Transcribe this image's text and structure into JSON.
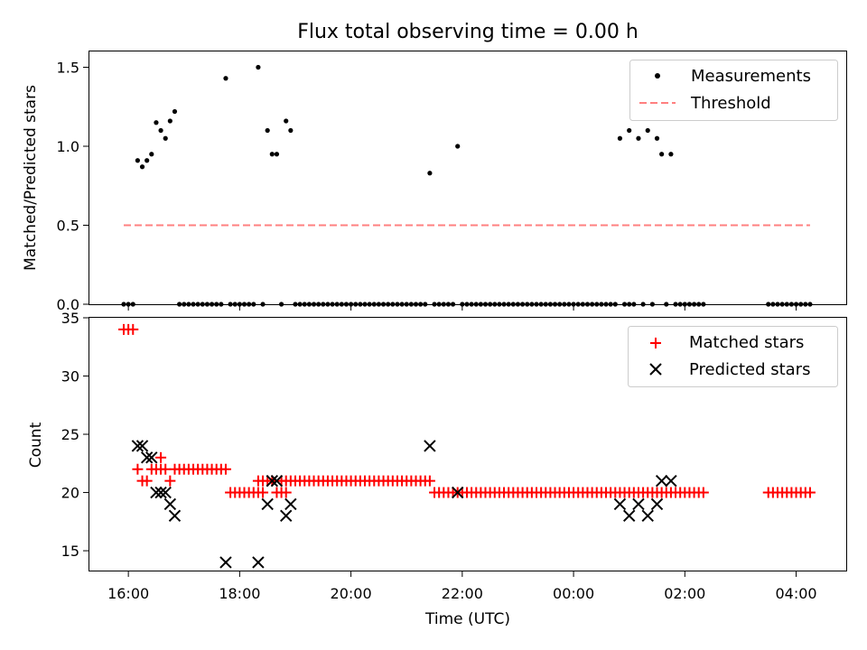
{
  "chart_data": [
    {
      "type": "scatter",
      "title": "Flux total observing time = 0.00 h",
      "ylabel": "Matched/Predicted stars",
      "xlabel": "",
      "ylim": [
        0.0,
        1.6
      ],
      "xlim": [
        "15:18",
        "04:54"
      ],
      "yticks": [
        "0.0",
        "0.5",
        "1.0",
        "1.5"
      ],
      "legend_position": "top-right",
      "series": [
        {
          "name": "Measurements",
          "marker": "dot",
          "color": "#000000",
          "points": [
            [
              "16:10",
              0.91
            ],
            [
              "16:15",
              0.87
            ],
            [
              "16:20",
              0.91
            ],
            [
              "16:25",
              0.95
            ],
            [
              "16:30",
              1.15
            ],
            [
              "16:35",
              1.1
            ],
            [
              "16:40",
              1.05
            ],
            [
              "16:45",
              1.16
            ],
            [
              "16:50",
              1.22
            ],
            [
              "17:45",
              1.43
            ],
            [
              "18:20",
              1.5
            ],
            [
              "18:30",
              1.1
            ],
            [
              "18:35",
              0.95
            ],
            [
              "18:40",
              0.95
            ],
            [
              "18:50",
              1.16
            ],
            [
              "18:55",
              1.1
            ],
            [
              "21:25",
              0.83
            ],
            [
              "21:55",
              1.0
            ],
            [
              "00:50",
              1.05
            ],
            [
              "01:00",
              1.1
            ],
            [
              "01:10",
              1.05
            ],
            [
              "01:20",
              1.1
            ],
            [
              "01:30",
              1.05
            ],
            [
              "01:35",
              0.95
            ],
            [
              "01:45",
              0.95
            ]
          ],
          "zero_points": [
            [
              "15:55",
              "16:05"
            ],
            [
              "16:55",
              "17:40"
            ],
            [
              "17:50",
              "18:15"
            ],
            [
              "18:25",
              "18:25"
            ],
            [
              "18:45",
              "18:45"
            ],
            [
              "19:00",
              "21:20"
            ],
            [
              "21:30",
              "21:50"
            ],
            [
              "22:00",
              "00:45"
            ],
            [
              "00:55",
              "01:05"
            ],
            [
              "01:15",
              "01:15"
            ],
            [
              "01:25",
              "01:25"
            ],
            [
              "01:40",
              "01:40"
            ],
            [
              "01:50",
              "02:20"
            ],
            [
              "03:30",
              "04:15"
            ]
          ]
        },
        {
          "name": "Threshold",
          "marker": "dashed-line",
          "color": "#ff8080",
          "points": [
            [
              "15:55",
              0.5
            ],
            [
              "04:15",
              0.5
            ]
          ]
        }
      ]
    },
    {
      "type": "scatter",
      "title": "",
      "ylabel": "Count",
      "xlabel": "Time (UTC)",
      "ylim": [
        13.3,
        35.0
      ],
      "xlim": [
        "15:18",
        "04:54"
      ],
      "yticks": [
        "15",
        "20",
        "25",
        "30",
        "35"
      ],
      "xticks": [
        "16:00",
        "18:00",
        "20:00",
        "22:00",
        "00:00",
        "02:00",
        "04:00"
      ],
      "legend_position": "top-right",
      "series": [
        {
          "name": "Matched stars",
          "marker": "plus",
          "color": "#ff0000",
          "runs": [
            [
              "15:55",
              "16:05",
              34
            ],
            [
              "16:10",
              "16:10",
              22
            ],
            [
              "16:15",
              "16:20",
              21
            ],
            [
              "16:25",
              "16:40",
              22
            ],
            [
              "16:35",
              "16:35",
              23
            ],
            [
              "16:45",
              "16:45",
              21
            ],
            [
              "16:50",
              "17:45",
              22
            ],
            [
              "17:50",
              "18:25",
              20
            ],
            [
              "18:20",
              "18:35",
              21
            ],
            [
              "18:40",
              "18:50",
              20
            ],
            [
              "18:45",
              "21:25",
              21
            ],
            [
              "21:30",
              "02:20",
              20
            ],
            [
              "03:30",
              "04:15",
              20
            ]
          ]
        },
        {
          "name": "Predicted stars",
          "marker": "x",
          "color": "#000000",
          "points": [
            [
              "16:10",
              24
            ],
            [
              "16:15",
              24
            ],
            [
              "16:20",
              23
            ],
            [
              "16:25",
              23
            ],
            [
              "16:30",
              20
            ],
            [
              "16:35",
              20
            ],
            [
              "16:40",
              20
            ],
            [
              "16:45",
              19
            ],
            [
              "16:50",
              18
            ],
            [
              "17:45",
              14
            ],
            [
              "18:20",
              14
            ],
            [
              "18:30",
              19
            ],
            [
              "18:35",
              21
            ],
            [
              "18:40",
              21
            ],
            [
              "18:50",
              18
            ],
            [
              "18:55",
              19
            ],
            [
              "21:25",
              24
            ],
            [
              "21:55",
              20
            ],
            [
              "00:50",
              19
            ],
            [
              "01:00",
              18
            ],
            [
              "01:10",
              19
            ],
            [
              "01:20",
              18
            ],
            [
              "01:30",
              19
            ],
            [
              "01:35",
              21
            ],
            [
              "01:45",
              21
            ]
          ]
        }
      ]
    }
  ]
}
